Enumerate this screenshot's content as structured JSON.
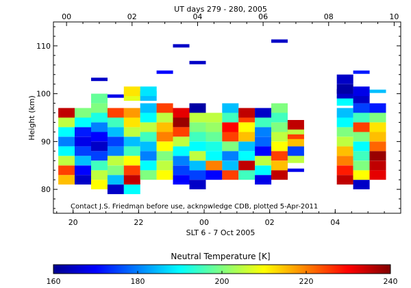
{
  "chart_data": {
    "type": "heatmap",
    "title": "UT days 279 - 280, 2005",
    "xlabel": "SLT 6 - 7 Oct 2005",
    "ylabel": "Height (km)",
    "top_axis_ticks": [
      "00",
      "02",
      "04",
      "06",
      "08",
      "10"
    ],
    "bottom_axis_ticks": [
      "20",
      "22",
      "00",
      "02",
      "04"
    ],
    "y_ticks": [
      80,
      90,
      100,
      110
    ],
    "ylim": [
      75,
      115
    ],
    "annotation": "Contact J.S. Friedman before use, acknowledge CDB, plotted 5-Apr-2011",
    "colorbar": {
      "label": "Neutral Temperature [K]",
      "range": [
        160,
        240
      ],
      "ticks": [
        "160",
        "180",
        "200",
        "220",
        "240"
      ]
    },
    "profiles": [
      {
        "ut": 0.0,
        "temps": [
          {
            "h": 82,
            "T": 215
          },
          {
            "h": 84,
            "T": 225
          },
          {
            "h": 86,
            "T": 205
          },
          {
            "h": 88,
            "T": 190
          },
          {
            "h": 90,
            "T": 180
          },
          {
            "h": 92,
            "T": 190
          },
          {
            "h": 94,
            "T": 205
          },
          {
            "h": 96,
            "T": 235
          }
        ]
      },
      {
        "ut": 0.5,
        "temps": [
          {
            "h": 82,
            "T": 165
          },
          {
            "h": 84,
            "T": 170
          },
          {
            "h": 86,
            "T": 185
          },
          {
            "h": 88,
            "T": 175
          },
          {
            "h": 90,
            "T": 168
          },
          {
            "h": 92,
            "T": 172
          },
          {
            "h": 94,
            "T": 190
          },
          {
            "h": 96,
            "T": 200
          }
        ]
      },
      {
        "ut": 1.0,
        "temps": [
          {
            "h": 81,
            "T": 210
          },
          {
            "h": 83,
            "T": 205
          },
          {
            "h": 85,
            "T": 195
          },
          {
            "h": 87,
            "T": 175
          },
          {
            "h": 89,
            "T": 165
          },
          {
            "h": 91,
            "T": 170
          },
          {
            "h": 93,
            "T": 180
          },
          {
            "h": 95,
            "T": 192
          },
          {
            "h": 97,
            "T": 200
          },
          {
            "h": 99,
            "T": 198
          },
          {
            "h": 103,
            "T": 165
          }
        ]
      },
      {
        "ut": 1.5,
        "temps": [
          {
            "h": 80,
            "T": 165
          },
          {
            "h": 82,
            "T": 185
          },
          {
            "h": 84,
            "T": 200
          },
          {
            "h": 86,
            "T": 205
          },
          {
            "h": 88,
            "T": 180
          },
          {
            "h": 90,
            "T": 175
          },
          {
            "h": 92,
            "T": 185
          },
          {
            "h": 94,
            "T": 195
          },
          {
            "h": 96,
            "T": 225
          },
          {
            "h": 99.5,
            "T": 168
          }
        ]
      },
      {
        "ut": 2.0,
        "temps": [
          {
            "h": 80,
            "T": 190
          },
          {
            "h": 82,
            "T": 235
          },
          {
            "h": 84,
            "T": 225
          },
          {
            "h": 86,
            "T": 210
          },
          {
            "h": 88,
            "T": 195
          },
          {
            "h": 90,
            "T": 185
          },
          {
            "h": 92,
            "T": 205
          },
          {
            "h": 94,
            "T": 212
          },
          {
            "h": 96,
            "T": 218
          },
          {
            "h": 99.5,
            "T": 208
          },
          {
            "h": 100.5,
            "T": 212
          }
        ]
      },
      {
        "ut": 2.5,
        "temps": [
          {
            "h": 83,
            "T": 200
          },
          {
            "h": 85,
            "T": 190
          },
          {
            "h": 87,
            "T": 180
          },
          {
            "h": 89,
            "T": 185
          },
          {
            "h": 91,
            "T": 195
          },
          {
            "h": 93,
            "T": 205
          },
          {
            "h": 95,
            "T": 190
          },
          {
            "h": 97,
            "T": 185
          },
          {
            "h": 99.5,
            "T": 185
          },
          {
            "h": 100.5,
            "T": 188
          }
        ]
      },
      {
        "ut": 3.0,
        "temps": [
          {
            "h": 83,
            "T": 210
          },
          {
            "h": 85,
            "T": 205
          },
          {
            "h": 87,
            "T": 200
          },
          {
            "h": 89,
            "T": 210
          },
          {
            "h": 91,
            "T": 220
          },
          {
            "h": 93,
            "T": 215
          },
          {
            "h": 95,
            "T": 205
          },
          {
            "h": 97,
            "T": 225
          },
          {
            "h": 104.5,
            "T": 170
          }
        ]
      },
      {
        "ut": 3.5,
        "temps": [
          {
            "h": 82,
            "T": 170
          },
          {
            "h": 84,
            "T": 175
          },
          {
            "h": 86,
            "T": 180
          },
          {
            "h": 88,
            "T": 190
          },
          {
            "h": 90,
            "T": 205
          },
          {
            "h": 92,
            "T": 225
          },
          {
            "h": 94,
            "T": 238
          },
          {
            "h": 96,
            "T": 232
          },
          {
            "h": 110,
            "T": 165
          }
        ]
      },
      {
        "ut": 4.0,
        "temps": [
          {
            "h": 81,
            "T": 165
          },
          {
            "h": 83,
            "T": 175
          },
          {
            "h": 85,
            "T": 185
          },
          {
            "h": 87,
            "T": 205
          },
          {
            "h": 89,
            "T": 190
          },
          {
            "h": 91,
            "T": 195
          },
          {
            "h": 93,
            "T": 200
          },
          {
            "h": 95,
            "T": 205
          },
          {
            "h": 97,
            "T": 162
          },
          {
            "h": 106.5,
            "T": 165
          }
        ]
      },
      {
        "ut": 4.5,
        "temps": [
          {
            "h": 83,
            "T": 170
          },
          {
            "h": 85,
            "T": 220
          },
          {
            "h": 87,
            "T": 190
          },
          {
            "h": 89,
            "T": 192
          },
          {
            "h": 91,
            "T": 198
          },
          {
            "h": 93,
            "T": 202
          },
          {
            "h": 95,
            "T": 205
          }
        ]
      },
      {
        "ut": 5.0,
        "temps": [
          {
            "h": 83,
            "T": 225
          },
          {
            "h": 85,
            "T": 185
          },
          {
            "h": 87,
            "T": 180
          },
          {
            "h": 89,
            "T": 200
          },
          {
            "h": 91,
            "T": 225
          },
          {
            "h": 93,
            "T": 230
          },
          {
            "h": 95,
            "T": 195
          },
          {
            "h": 97,
            "T": 185
          }
        ]
      },
      {
        "ut": 5.5,
        "temps": [
          {
            "h": 83,
            "T": 195
          },
          {
            "h": 85,
            "T": 235
          },
          {
            "h": 87,
            "T": 190
          },
          {
            "h": 89,
            "T": 185
          },
          {
            "h": 91,
            "T": 215
          },
          {
            "h": 93,
            "T": 210
          },
          {
            "h": 95,
            "T": 225
          },
          {
            "h": 96,
            "T": 235
          }
        ]
      },
      {
        "ut": 6.0,
        "temps": [
          {
            "h": 82,
            "T": 168
          },
          {
            "h": 84,
            "T": 190
          },
          {
            "h": 86,
            "T": 205
          },
          {
            "h": 88,
            "T": 170
          },
          {
            "h": 90,
            "T": 178
          },
          {
            "h": 92,
            "T": 180
          },
          {
            "h": 94,
            "T": 195
          },
          {
            "h": 96,
            "T": 165
          }
        ]
      },
      {
        "ut": 6.5,
        "temps": [
          {
            "h": 83,
            "T": 235
          },
          {
            "h": 85,
            "T": 215
          },
          {
            "h": 87,
            "T": 225
          },
          {
            "h": 89,
            "T": 210
          },
          {
            "h": 91,
            "T": 205
          },
          {
            "h": 93,
            "T": 200
          },
          {
            "h": 95,
            "T": 195
          },
          {
            "h": 97,
            "T": 200
          },
          {
            "h": 111,
            "T": 165
          }
        ]
      },
      {
        "ut": 7.0,
        "temps": [
          {
            "h": 84,
            "T": 168
          },
          {
            "h": 86.5,
            "T": 205
          },
          {
            "h": 88,
            "T": 175
          },
          {
            "h": 90,
            "T": 215
          },
          {
            "h": 91.5,
            "T": 225
          },
          {
            "h": 92.5,
            "T": 205
          },
          {
            "h": 93.5,
            "T": 235
          }
        ]
      },
      {
        "ut": 8.5,
        "temps": [
          {
            "h": 82,
            "T": 235
          },
          {
            "h": 84,
            "T": 228
          },
          {
            "h": 86,
            "T": 220
          },
          {
            "h": 88,
            "T": 215
          },
          {
            "h": 90,
            "T": 205
          },
          {
            "h": 92,
            "T": 200
          },
          {
            "h": 94,
            "T": 190
          },
          {
            "h": 96,
            "T": 185
          },
          {
            "h": 98.5,
            "T": 190
          },
          {
            "h": 100,
            "T": 165
          },
          {
            "h": 101,
            "T": 162
          },
          {
            "h": 103,
            "T": 165
          }
        ]
      },
      {
        "ut": 9.0,
        "temps": [
          {
            "h": 81,
            "T": 165
          },
          {
            "h": 83,
            "T": 210
          },
          {
            "h": 85,
            "T": 200
          },
          {
            "h": 87,
            "T": 195
          },
          {
            "h": 89,
            "T": 190
          },
          {
            "h": 91,
            "T": 200
          },
          {
            "h": 93,
            "T": 225
          },
          {
            "h": 95,
            "T": 195
          },
          {
            "h": 97,
            "T": 175
          },
          {
            "h": 99,
            "T": 165
          },
          {
            "h": 100.5,
            "T": 168
          },
          {
            "h": 104.5,
            "T": 172
          }
        ]
      },
      {
        "ut": 9.5,
        "temps": [
          {
            "h": 83,
            "T": 232
          },
          {
            "h": 85,
            "T": 235
          },
          {
            "h": 87,
            "T": 238
          },
          {
            "h": 89,
            "T": 222
          },
          {
            "h": 91,
            "T": 215
          },
          {
            "h": 93,
            "T": 212
          },
          {
            "h": 95,
            "T": 200
          },
          {
            "h": 97,
            "T": 172
          },
          {
            "h": 100.5,
            "T": 185
          }
        ]
      }
    ]
  }
}
